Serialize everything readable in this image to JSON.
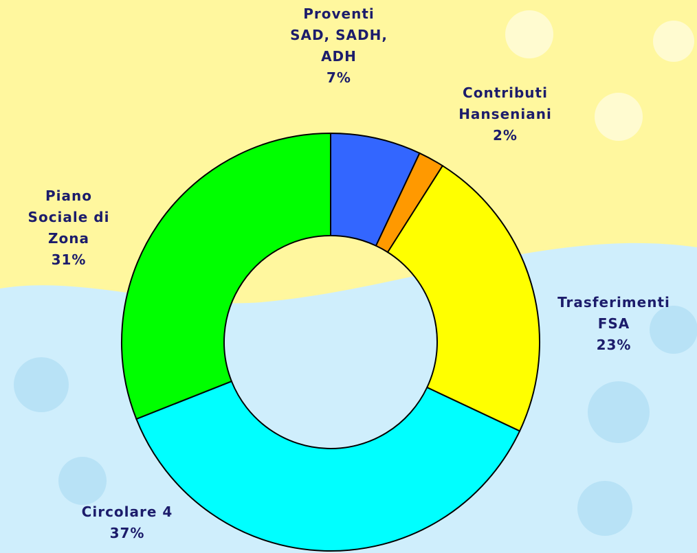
{
  "chart_data": {
    "type": "donut",
    "categories": [
      "Proventi\nSAD, SADH,\nADH",
      "Contributi\nHanseniani",
      "Trasferimenti FSA",
      "Circolare 4",
      "Piano\nSociale di\nZona"
    ],
    "values": [
      7,
      2,
      23,
      37,
      31
    ],
    "value_labels": [
      "7%",
      "2%",
      "23%",
      "37%",
      "31%"
    ],
    "colors": [
      "#3366ff",
      "#ff9900",
      "#ffff00",
      "#00ffff",
      "#00ff00"
    ]
  }
}
